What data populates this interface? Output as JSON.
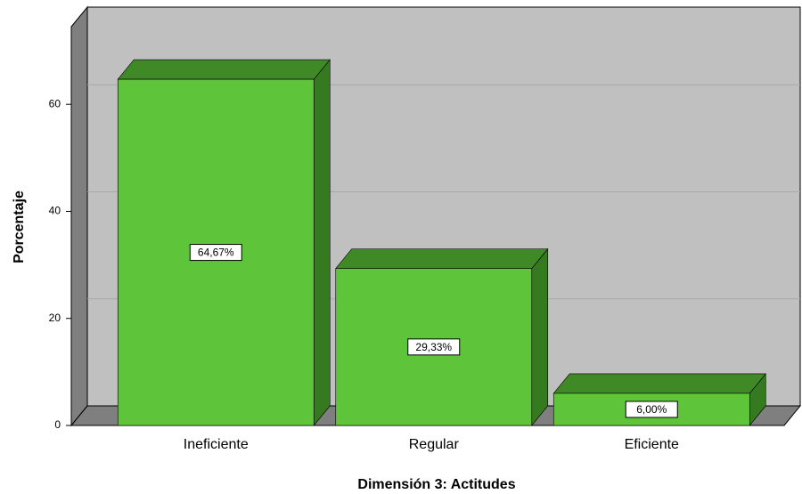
{
  "chart_data": {
    "type": "bar3d",
    "xlabel": "Dimensión 3: Actitudes",
    "ylabel": "Porcentaje",
    "categories": [
      "Ineficiente",
      "Regular",
      "Eficiente"
    ],
    "values": [
      64.67,
      29.33,
      6.0
    ],
    "value_labels": [
      "64,67%",
      "29,33%",
      "6,00%"
    ],
    "color": "#5ec43a",
    "ylim": [
      0,
      74.5
    ],
    "yticks": [
      0,
      20,
      40,
      60
    ],
    "grid": true
  }
}
